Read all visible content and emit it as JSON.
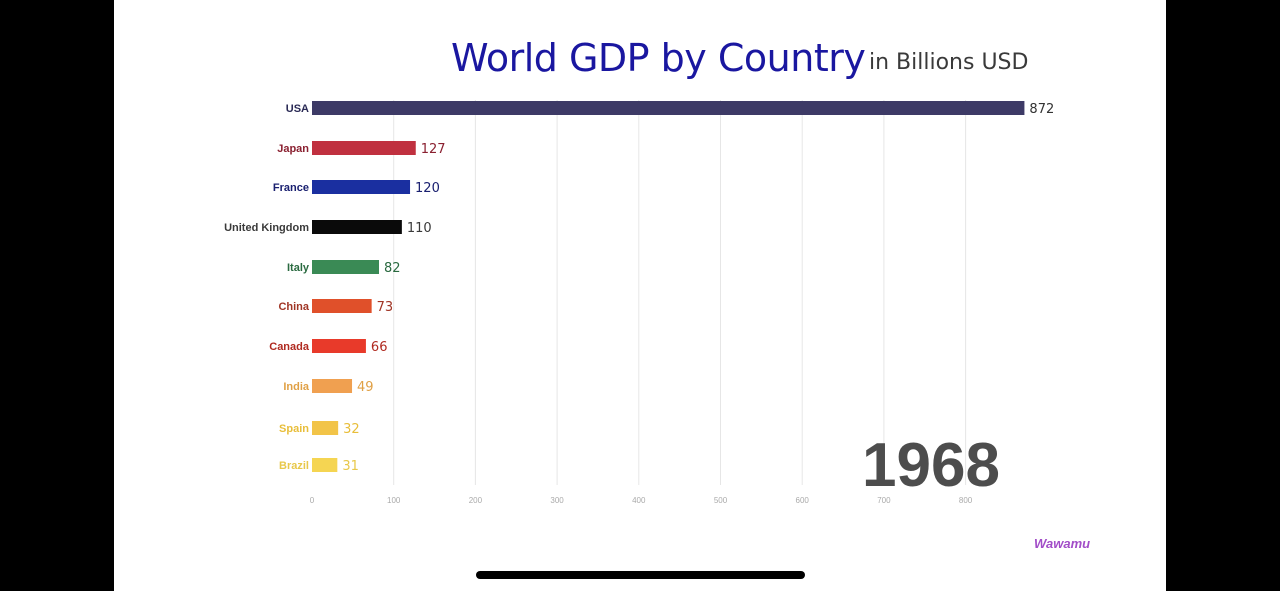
{
  "chart_data": {
    "type": "bar",
    "orientation": "horizontal",
    "title": "World GDP by Country",
    "subtitle": "in Billions USD",
    "year": "1968",
    "categories": [
      "USA",
      "Japan",
      "France",
      "United Kingdom",
      "Italy",
      "China",
      "Canada",
      "India",
      "Spain",
      "Brazil"
    ],
    "values": [
      872,
      127,
      120,
      110,
      82,
      73,
      66,
      49,
      32,
      31
    ],
    "colors": [
      "#3d3a66",
      "#c0303f",
      "#1a2fa0",
      "#0a0a0a",
      "#3a8a55",
      "#e0502a",
      "#e83a2a",
      "#f0a050",
      "#f2c448",
      "#f5d552"
    ],
    "label_colors": [
      "#2a2a55",
      "#8a2030",
      "#1a2070",
      "#3a3a3a",
      "#2a6a40",
      "#a03525",
      "#b02a20",
      "#e0a045",
      "#e8be3a",
      "#e8c84a"
    ],
    "value_colors": [
      "#333333",
      "#8a2030",
      "#1a2070",
      "#3a3a3a",
      "#2a6a40",
      "#a03525",
      "#b02a20",
      "#e0a045",
      "#e8be3a",
      "#e8c84a"
    ],
    "xticks": [
      0,
      100,
      200,
      300,
      400,
      500,
      600,
      700,
      800
    ],
    "xlim": [
      0,
      900
    ],
    "grid": true,
    "legend": "none"
  },
  "watermark": "Wawamu"
}
